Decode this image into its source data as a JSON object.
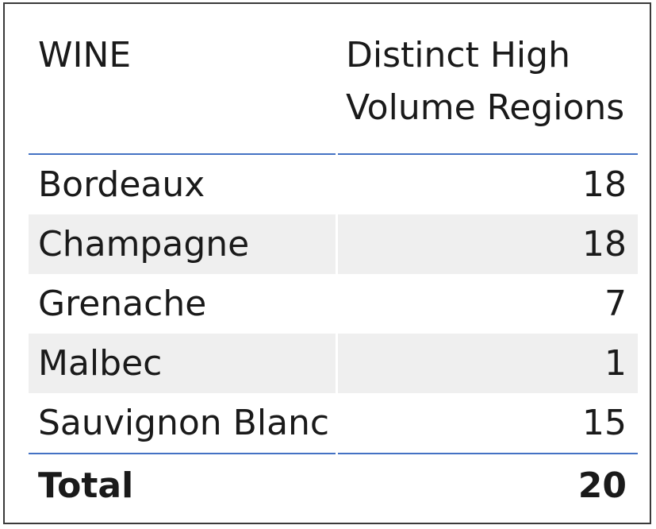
{
  "table": {
    "columns": [
      "WINE",
      "Distinct High Volume Regions"
    ],
    "rows": [
      {
        "wine": "Bordeaux",
        "value": "18"
      },
      {
        "wine": "Champagne",
        "value": "18"
      },
      {
        "wine": "Grenache",
        "value": "7"
      },
      {
        "wine": "Malbec",
        "value": "1"
      },
      {
        "wine": "Sauvignon Blanc",
        "value": "15"
      }
    ],
    "total": {
      "label": "Total",
      "value": "20"
    }
  },
  "colors": {
    "rule": "#4472c4",
    "stripe": "#efefef",
    "text": "#1a1a1a",
    "border": "#3a3a3a"
  }
}
